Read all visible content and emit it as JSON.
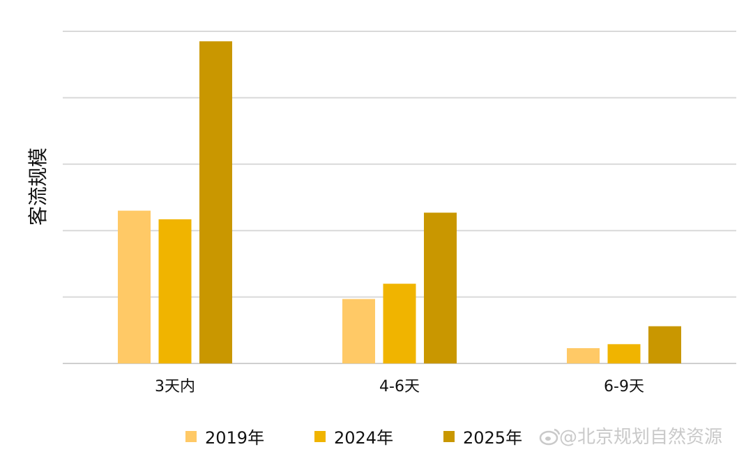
{
  "chart_data": {
    "type": "bar",
    "title": "",
    "xlabel": "",
    "ylabel": "客流规模",
    "categories": [
      "3天内",
      "4-6天",
      "6-9天"
    ],
    "series": [
      {
        "name": "2019年",
        "color": "#FFC966",
        "values": [
          2.3,
          0.97,
          0.23
        ]
      },
      {
        "name": "2024年",
        "color": "#F0B400",
        "values": [
          2.17,
          1.2,
          0.29
        ]
      },
      {
        "name": "2025年",
        "color": "#C99700",
        "values": [
          4.85,
          2.27,
          0.56
        ]
      }
    ],
    "ylim": [
      0,
      5
    ],
    "grid": true,
    "y_tick_labels_shown": false,
    "legend_position": "bottom"
  },
  "watermark": {
    "text": "@北京规划自然资源"
  }
}
